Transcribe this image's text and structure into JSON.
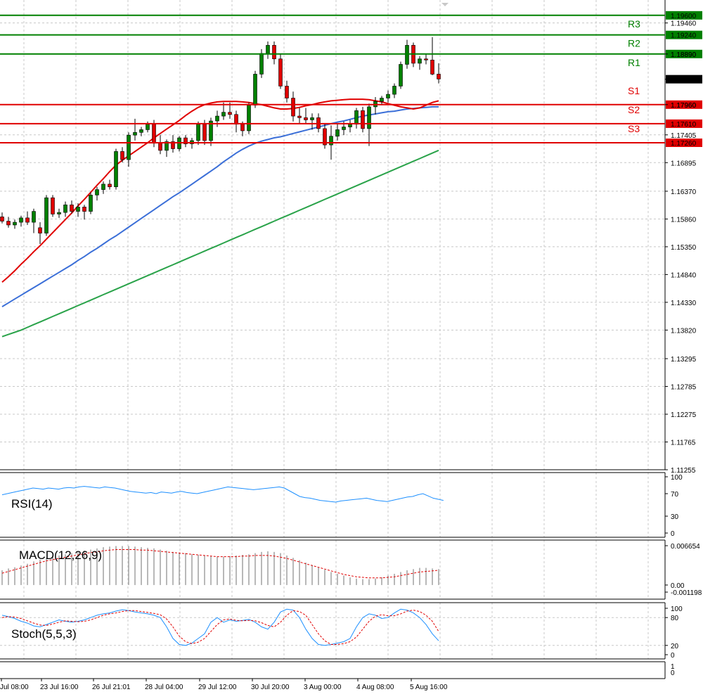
{
  "chart_data": {
    "type": "candlestick",
    "main": {
      "ylim": [
        1.11255,
        1.1983
      ],
      "y_ticks": [
        "1.19460",
        "1.18890",
        "1.18427",
        "1.17960",
        "1.17405",
        "1.16895",
        "1.16370",
        "1.15860",
        "1.15350",
        "1.14840",
        "1.14330",
        "1.13820",
        "1.13295",
        "1.12785",
        "1.12275",
        "1.11765",
        "1.11255"
      ],
      "current_price": "1.18427",
      "levels": [
        {
          "name": "R3",
          "value": 1.196,
          "label": "1.19600",
          "color": "#008000"
        },
        {
          "name": "R2",
          "value": 1.1924,
          "label": "1.19240",
          "color": "#008000"
        },
        {
          "name": "R1",
          "value": 1.1889,
          "label": "1.18890",
          "color": "#008000"
        },
        {
          "name": "S1",
          "value": 1.1796,
          "label": "1.17960",
          "color": "#e00000"
        },
        {
          "name": "S2",
          "value": 1.1761,
          "label": "1.17610",
          "color": "#e00000"
        },
        {
          "name": "S3",
          "value": 1.1726,
          "label": "1.17260",
          "color": "#e00000"
        }
      ],
      "candles": [
        [
          1.159,
          1.1598,
          1.1578,
          1.1582
        ],
        [
          1.1582,
          1.159,
          1.157,
          1.1575
        ],
        [
          1.1575,
          1.1585,
          1.1568,
          1.158
        ],
        [
          1.158,
          1.1592,
          1.1572,
          1.1588
        ],
        [
          1.1588,
          1.16,
          1.1575,
          1.158
        ],
        [
          1.158,
          1.1605,
          1.156,
          1.16
        ],
        [
          1.157,
          1.158,
          1.154,
          1.156
        ],
        [
          1.156,
          1.163,
          1.1555,
          1.1625
        ],
        [
          1.1625,
          1.163,
          1.159,
          1.1595
        ],
        [
          1.1595,
          1.1605,
          1.1588,
          1.1598
        ],
        [
          1.1598,
          1.1618,
          1.159,
          1.1612
        ],
        [
          1.1612,
          1.162,
          1.1596,
          1.16
        ],
        [
          1.16,
          1.1615,
          1.159,
          1.1608
        ],
        [
          1.1608,
          1.1612,
          1.1585,
          1.16
        ],
        [
          1.16,
          1.1635,
          1.1595,
          1.163
        ],
        [
          1.163,
          1.1645,
          1.162,
          1.164
        ],
        [
          1.164,
          1.1655,
          1.1632,
          1.165
        ],
        [
          1.165,
          1.1658,
          1.164,
          1.1645
        ],
        [
          1.1645,
          1.1715,
          1.164,
          1.171
        ],
        [
          1.171,
          1.1718,
          1.169,
          1.1695
        ],
        [
          1.1695,
          1.1745,
          1.1682,
          1.174
        ],
        [
          1.174,
          1.177,
          1.173,
          1.1745
        ],
        [
          1.1745,
          1.1755,
          1.1738,
          1.175
        ],
        [
          1.175,
          1.1765,
          1.1745,
          1.176
        ],
        [
          1.176,
          1.1768,
          1.1718,
          1.1725
        ],
        [
          1.1725,
          1.174,
          1.1705,
          1.1712
        ],
        [
          1.1712,
          1.1732,
          1.17,
          1.1728
        ],
        [
          1.1728,
          1.174,
          1.1708,
          1.1715
        ],
        [
          1.1715,
          1.1738,
          1.171,
          1.1735
        ],
        [
          1.1735,
          1.174,
          1.1718,
          1.1724
        ],
        [
          1.1724,
          1.1735,
          1.1715,
          1.173
        ],
        [
          1.173,
          1.1765,
          1.1722,
          1.176
        ],
        [
          1.176,
          1.1768,
          1.1722,
          1.173
        ],
        [
          1.173,
          1.1772,
          1.172,
          1.1766
        ],
        [
          1.1766,
          1.1785,
          1.1755,
          1.1775
        ],
        [
          1.1775,
          1.18,
          1.1768,
          1.1782
        ],
        [
          1.1782,
          1.18,
          1.177,
          1.1778
        ],
        [
          1.1778,
          1.1785,
          1.1745,
          1.176
        ],
        [
          1.176,
          1.1765,
          1.1738,
          1.1748
        ],
        [
          1.1748,
          1.18,
          1.1742,
          1.1795
        ],
        [
          1.1795,
          1.1858,
          1.179,
          1.1852
        ],
        [
          1.1852,
          1.1898,
          1.1845,
          1.189
        ],
        [
          1.189,
          1.1912,
          1.188,
          1.1905
        ],
        [
          1.1905,
          1.1912,
          1.187,
          1.188
        ],
        [
          1.188,
          1.189,
          1.1825,
          1.183
        ],
        [
          1.183,
          1.184,
          1.18,
          1.1808
        ],
        [
          1.1808,
          1.182,
          1.1765,
          1.1775
        ],
        [
          1.1775,
          1.179,
          1.1762,
          1.1772
        ],
        [
          1.1772,
          1.179,
          1.1762,
          1.1768
        ],
        [
          1.1768,
          1.178,
          1.175,
          1.1772
        ],
        [
          1.1772,
          1.178,
          1.1745,
          1.1752
        ],
        [
          1.1752,
          1.1762,
          1.1715,
          1.1722
        ],
        [
          1.1722,
          1.1758,
          1.1695,
          1.1738
        ],
        [
          1.1738,
          1.176,
          1.173,
          1.175
        ],
        [
          1.175,
          1.1765,
          1.174,
          1.1755
        ],
        [
          1.1755,
          1.1768,
          1.1745,
          1.176
        ],
        [
          1.176,
          1.179,
          1.1752,
          1.1785
        ],
        [
          1.1785,
          1.1792,
          1.1745,
          1.1752
        ],
        [
          1.1752,
          1.1798,
          1.172,
          1.1792
        ],
        [
          1.1792,
          1.181,
          1.1778,
          1.1802
        ],
        [
          1.1802,
          1.1812,
          1.1795,
          1.1808
        ],
        [
          1.1808,
          1.1822,
          1.18,
          1.1815
        ],
        [
          1.1815,
          1.1835,
          1.1808,
          1.183
        ],
        [
          1.183,
          1.1875,
          1.1825,
          1.187
        ],
        [
          1.187,
          1.1915,
          1.1862,
          1.1905
        ],
        [
          1.1905,
          1.191,
          1.1865,
          1.1872
        ],
        [
          1.1872,
          1.1885,
          1.186,
          1.188
        ],
        [
          1.188,
          1.189,
          1.187,
          1.1878
        ],
        [
          1.1878,
          1.192,
          1.185,
          1.1852
        ],
        [
          1.1852,
          1.1872,
          1.1835,
          1.1843
        ]
      ],
      "ma_fast": [
        1.147,
        1.148,
        1.1491,
        1.1503,
        1.1514,
        1.1526,
        1.1537,
        1.1549,
        1.1561,
        1.1573,
        1.1585,
        1.1597,
        1.161,
        1.1622,
        1.1635,
        1.1648,
        1.166,
        1.1673,
        1.1685,
        1.1694,
        1.1702,
        1.171,
        1.1718,
        1.1726,
        1.1735,
        1.1743,
        1.1751,
        1.1759,
        1.1767,
        1.1776,
        1.1784,
        1.1791,
        1.1796,
        1.1799,
        1.1801,
        1.1802,
        1.1802,
        1.1802,
        1.1801,
        1.18,
        1.1798,
        1.1796,
        1.1793,
        1.179,
        1.1788,
        1.1788,
        1.1789,
        1.1791,
        1.1794,
        1.1796,
        1.1799,
        1.1801,
        1.1803,
        1.1804,
        1.1805,
        1.1806,
        1.1806,
        1.1806,
        1.1805,
        1.1803,
        1.1801,
        1.1798,
        1.1795,
        1.1792,
        1.179,
        1.1788,
        1.179,
        1.1795,
        1.18,
        1.1803,
        1.1805,
        1.1806,
        1.1805,
        1.1804,
        1.1804,
        1.1804,
        1.1804,
        1.1804,
        1.1804,
        1.1804,
        1.1804
      ],
      "ma_mid": [
        1.1425,
        1.1432,
        1.1439,
        1.1446,
        1.1453,
        1.146,
        1.1467,
        1.1474,
        1.1481,
        1.1488,
        1.1495,
        1.1502,
        1.151,
        1.1517,
        1.1525,
        1.1532,
        1.154,
        1.1548,
        1.1555,
        1.1563,
        1.1571,
        1.1579,
        1.1587,
        1.1595,
        1.1603,
        1.1611,
        1.1619,
        1.1627,
        1.1634,
        1.1642,
        1.165,
        1.1658,
        1.1666,
        1.1674,
        1.1682,
        1.1691,
        1.1699,
        1.1707,
        1.1714,
        1.172,
        1.1725,
        1.1729,
        1.1732,
        1.1735,
        1.1737,
        1.174,
        1.1743,
        1.1746,
        1.1749,
        1.1752,
        1.1755,
        1.1758,
        1.1761,
        1.1764,
        1.1766,
        1.1769,
        1.1772,
        1.1775,
        1.1777,
        1.1779,
        1.1781,
        1.1783,
        1.1784,
        1.1786,
        1.1788,
        1.1789,
        1.179,
        1.1791,
        1.1792,
        1.1792,
        1.1792,
        1.1792,
        1.1792,
        1.1792,
        1.1792,
        1.1792,
        1.1792,
        1.1792,
        1.1792,
        1.1792
      ],
      "ma_slow": [
        1.137,
        1.1374,
        1.1378,
        1.1382,
        1.1387,
        1.1392,
        1.1397,
        1.1402,
        1.1407,
        1.1412,
        1.1417,
        1.1422,
        1.1427,
        1.1432,
        1.1437,
        1.1442,
        1.1447,
        1.1452,
        1.1457,
        1.1462,
        1.1467,
        1.1472,
        1.1477,
        1.1482,
        1.1487,
        1.1492,
        1.1497,
        1.1502,
        1.1507,
        1.1512,
        1.1517,
        1.1522,
        1.1527,
        1.1532,
        1.1537,
        1.1542,
        1.1547,
        1.1552,
        1.1557,
        1.1562,
        1.1567,
        1.1572,
        1.1577,
        1.1582,
        1.1587,
        1.1592,
        1.1597,
        1.1602,
        1.1607,
        1.1612,
        1.1617,
        1.1622,
        1.1627,
        1.1632,
        1.1637,
        1.1642,
        1.1647,
        1.1652,
        1.1657,
        1.1662,
        1.1667,
        1.1672,
        1.1677,
        1.1682,
        1.1687,
        1.1692,
        1.1697,
        1.1702,
        1.1707,
        1.1712
      ],
      "ma_colors": {
        "fast": "#e00000",
        "mid": "#3b6fd8",
        "slow": "#2aa34a"
      }
    },
    "rsi": {
      "label": "RSI(14)",
      "y_ticks": [
        "100",
        "70",
        "30",
        "0"
      ],
      "color": "#1e90ff",
      "values": [
        68,
        70,
        72,
        74,
        76,
        78,
        80,
        79,
        78,
        80,
        79,
        78,
        80,
        81,
        80,
        82,
        83,
        82,
        81,
        80,
        82,
        81,
        80,
        78,
        76,
        74,
        73,
        72,
        71,
        72,
        70,
        73,
        72,
        71,
        73,
        74,
        72,
        71,
        70,
        72,
        74,
        76,
        78,
        80,
        82,
        81,
        80,
        79,
        78,
        77,
        78,
        79,
        80,
        81,
        82,
        80,
        75,
        70,
        65,
        63,
        62,
        60,
        58,
        57,
        56,
        55,
        57,
        58,
        59,
        60,
        61,
        62,
        60,
        58,
        57,
        56,
        58,
        60,
        62,
        64,
        65,
        68,
        70,
        66,
        62,
        60,
        58
      ]
    },
    "macd": {
      "label": "MACD(12,26,9)",
      "y_ticks": [
        "0.006654",
        "0.00",
        "-0.001198"
      ],
      "ylim": [
        -0.001198,
        0.006654
      ],
      "bar_color": "#a0a0a0",
      "signal_color": "#e00000",
      "hist": [
        0.0025,
        0.0028,
        0.003,
        0.0033,
        0.0036,
        0.004,
        0.0043,
        0.0046,
        0.0048,
        0.005,
        0.0052,
        0.0054,
        0.0056,
        0.0058,
        0.006,
        0.0062,
        0.0064,
        0.0065,
        0.0066,
        0.0066,
        0.0066,
        0.0065,
        0.0064,
        0.0063,
        0.0062,
        0.006,
        0.0058,
        0.0056,
        0.0055,
        0.0054,
        0.0052,
        0.0051,
        0.005,
        0.0049,
        0.0048,
        0.0048,
        0.0049,
        0.005,
        0.0051,
        0.0052,
        0.0054,
        0.0056,
        0.0057,
        0.0056,
        0.0054,
        0.005,
        0.0046,
        0.0042,
        0.0038,
        0.0034,
        0.003,
        0.0026,
        0.0022,
        0.0019,
        0.0016,
        0.0013,
        0.0011,
        0.001,
        0.001,
        0.0011,
        0.0013,
        0.0016,
        0.0019,
        0.0022,
        0.0025,
        0.0027,
        0.0029,
        0.0029,
        0.0028,
        0.0027
      ],
      "signal": [
        0.002,
        0.0023,
        0.0026,
        0.0029,
        0.0032,
        0.0035,
        0.0038,
        0.0041,
        0.0043,
        0.0045,
        0.0047,
        0.0049,
        0.0051,
        0.0053,
        0.0055,
        0.0056,
        0.0058,
        0.0059,
        0.006,
        0.006,
        0.006,
        0.006,
        0.0059,
        0.0059,
        0.0058,
        0.0057,
        0.0056,
        0.0055,
        0.0054,
        0.0053,
        0.0052,
        0.0051,
        0.005,
        0.0049,
        0.0048,
        0.0048,
        0.0048,
        0.0048,
        0.0049,
        0.0049,
        0.005,
        0.005,
        0.005,
        0.0049,
        0.0047,
        0.0045,
        0.0042,
        0.0039,
        0.0036,
        0.0033,
        0.003,
        0.0027,
        0.0024,
        0.0021,
        0.0018,
        0.0016,
        0.0014,
        0.0013,
        0.0012,
        0.0012,
        0.0012,
        0.0013,
        0.0014,
        0.0016,
        0.0018,
        0.002,
        0.0022,
        0.0023,
        0.0024,
        0.0025
      ]
    },
    "stoch": {
      "label": "Stoch(5,5,3)",
      "y_ticks": [
        "100",
        "80",
        "20",
        "0"
      ],
      "k_color": "#1e90ff",
      "d_color": "#e00000",
      "k": [
        85,
        82,
        78,
        72,
        68,
        62,
        60,
        65,
        70,
        75,
        72,
        70,
        72,
        75,
        80,
        85,
        88,
        90,
        94,
        97,
        95,
        92,
        90,
        88,
        85,
        80,
        60,
        35,
        22,
        20,
        25,
        35,
        45,
        70,
        80,
        70,
        75,
        72,
        74,
        76,
        70,
        60,
        55,
        70,
        92,
        98,
        96,
        80,
        55,
        35,
        22,
        20,
        22,
        25,
        28,
        35,
        60,
        80,
        88,
        85,
        78,
        80,
        90,
        98,
        96,
        90,
        80,
        65,
        45,
        30
      ],
      "d": [
        80,
        82,
        81,
        78,
        73,
        68,
        64,
        63,
        66,
        70,
        73,
        72,
        71,
        72,
        75,
        80,
        85,
        88,
        90,
        93,
        95,
        95,
        93,
        91,
        89,
        86,
        77,
        60,
        40,
        28,
        24,
        27,
        35,
        50,
        65,
        75,
        77,
        74,
        73,
        74,
        73,
        69,
        63,
        60,
        70,
        85,
        95,
        93,
        85,
        65,
        45,
        30,
        22,
        22,
        24,
        28,
        38,
        55,
        72,
        83,
        86,
        84,
        84,
        88,
        94,
        96,
        93,
        85,
        72,
        50
      ]
    },
    "x_labels": [
      "Jul 08:00",
      "23 Jul 16:00",
      "26 Jul 21:01",
      "28 Jul 04:00",
      "29 Jul 12:00",
      "30 Jul 20:00",
      "3 Aug 00:00",
      "4 Aug 08:00",
      "5 Aug 16:00"
    ]
  }
}
